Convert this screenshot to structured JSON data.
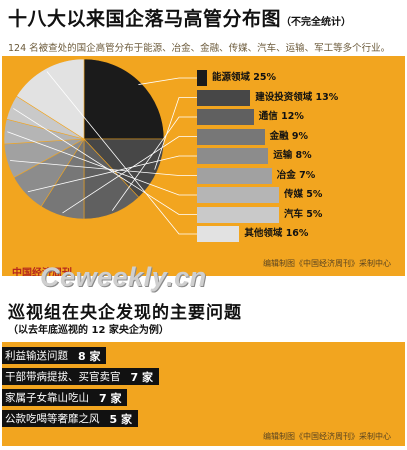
{
  "header": {
    "title": "十八大以来国企落马高管分布图",
    "title_note": "（不完全统计）",
    "intro": "124 名被查处的国企高管分布于能源、冶金、金融、传媒、汽车、运输、军工等多个行业。"
  },
  "chart_data": {
    "type": "pie",
    "title": "十八大以来国企落马高管分布图",
    "slices": [
      {
        "label": "能源领域 25%",
        "value": 25,
        "color": "#1b1b1b"
      },
      {
        "label": "建设投资领域 13%",
        "value": 13,
        "color": "#474747"
      },
      {
        "label": "通信 12%",
        "value": 12,
        "color": "#606060"
      },
      {
        "label": "金融 9%",
        "value": 9,
        "color": "#777777"
      },
      {
        "label": "运输 8%",
        "value": 8,
        "color": "#8c8c8c"
      },
      {
        "label": "冶金 7%",
        "value": 7,
        "color": "#a1a1a1"
      },
      {
        "label": "传媒 5%",
        "value": 5,
        "color": "#b5b5b5"
      },
      {
        "label": "汽车 5%",
        "value": 5,
        "color": "#c9c9c9"
      },
      {
        "label": "其他领域 16%",
        "value": 16,
        "color": "#e2e2e2"
      }
    ]
  },
  "credits": {
    "chart_credit": "编辑制图《中国经济周刊》采制中心",
    "watermark": "中国经济周刊",
    "brand": "Ceweekly.cn",
    "issues_credit": "编辑制图《中国经济周刊》采制中心"
  },
  "issues": {
    "title": "巡视组在央企发现的主要问题",
    "subtitle": "（以去年底巡视的 12 家央企为例）",
    "items": [
      {
        "label": "利益输送问题",
        "count": "8 家"
      },
      {
        "label": "干部带病提拔、买官卖官",
        "count": "7 家"
      },
      {
        "label": "家属子女靠山吃山",
        "count": "7 家"
      },
      {
        "label": "公款吃喝等奢靡之风",
        "count": "5 家"
      }
    ]
  }
}
